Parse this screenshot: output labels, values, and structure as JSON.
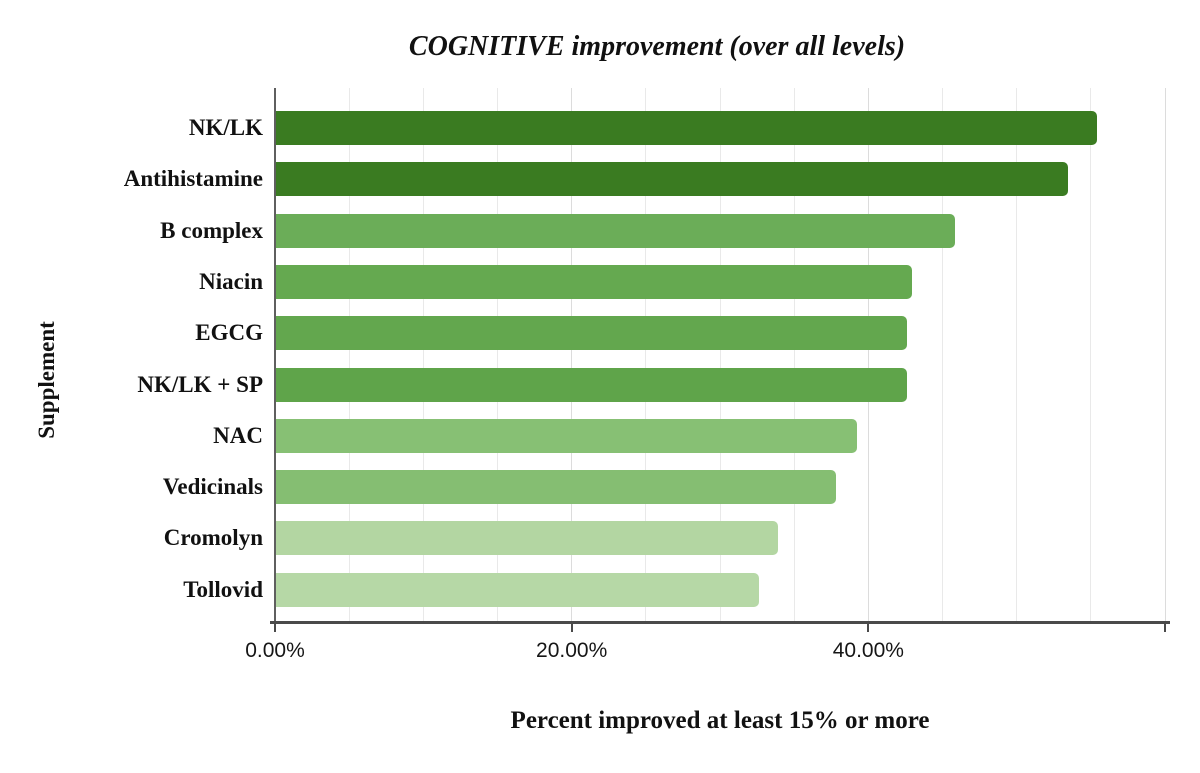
{
  "chart_data": {
    "type": "bar",
    "orientation": "horizontal",
    "title": "COGNITIVE improvement (over all levels)",
    "xlabel": "Percent improved at least 15% or more",
    "ylabel": "Supplement",
    "categories": [
      "NK/LK",
      "Antihistamine",
      "B complex",
      "Niacin",
      "EGCG",
      "NK/LK + SP",
      "NAC",
      "Vedicinals",
      "Cromolyn",
      "Tollovid"
    ],
    "values": [
      55.4,
      53.4,
      45.8,
      42.9,
      42.6,
      42.6,
      39.2,
      37.8,
      33.9,
      32.6
    ],
    "bar_colors": [
      "#3A7B21",
      "#3A7B21",
      "#6BAD58",
      "#65A950",
      "#63A74E",
      "#5FA44A",
      "#87C074",
      "#85BE72",
      "#B3D6A2",
      "#B6D8A6"
    ],
    "xlim": [
      0,
      60
    ],
    "x_tick_values": [
      0,
      20,
      40
    ],
    "x_tick_labels": [
      "0.00%",
      "20.00%",
      "40.00%"
    ],
    "x_tick_marks": [
      0,
      20,
      40,
      60
    ],
    "minor_grid_step_pct": 5,
    "grid": true,
    "legend": "none",
    "gridline_color": "#e9e9e9",
    "axis_color": "#4a4a4a",
    "background_color": "#ffffff"
  }
}
